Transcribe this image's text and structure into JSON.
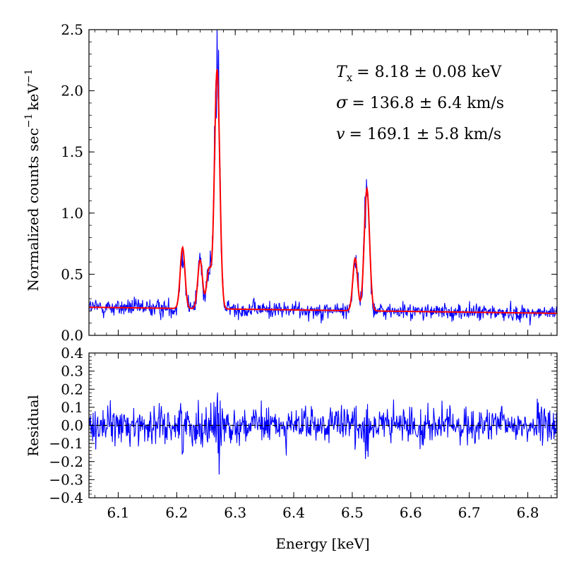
{
  "chart_data": [
    {
      "type": "line",
      "panel": "spectrum",
      "ylabel": "Normalized counts sec",
      "ylabel_unit": "keV",
      "ylabel_exp": "−1",
      "xlim": [
        6.05,
        6.85
      ],
      "ylim": [
        0.0,
        2.5
      ],
      "yticks": [
        0.0,
        0.5,
        1.0,
        1.5,
        2.0,
        2.5
      ],
      "ytick_labels": [
        "0.0",
        "0.5",
        "1.0",
        "1.5",
        "2.0",
        "2.5"
      ],
      "series": [
        {
          "name": "data",
          "color": "#0000ff"
        },
        {
          "name": "model",
          "color": "#ff0000"
        }
      ],
      "continuum": {
        "x": [
          6.05,
          6.85
        ],
        "y": [
          0.23,
          0.18
        ]
      },
      "lines": [
        {
          "center": 6.21,
          "amplitude": 0.5,
          "sigma": 0.004
        },
        {
          "center": 6.24,
          "amplitude": 0.4,
          "sigma": 0.004
        },
        {
          "center": 6.255,
          "amplitude": 0.32,
          "sigma": 0.004
        },
        {
          "center": 6.269,
          "amplitude": 1.96,
          "sigma": 0.0045
        },
        {
          "center": 6.505,
          "amplitude": 0.43,
          "sigma": 0.004
        },
        {
          "center": 6.525,
          "amplitude": 1.0,
          "sigma": 0.0045
        }
      ],
      "annotations": {
        "tx": {
          "sym": "T",
          "sub": "x",
          "value": "= 8.18 ± 0.08 keV"
        },
        "sigma": {
          "sym": "σ",
          "value": "= 136.8 ± 6.4 km/s"
        },
        "v": {
          "sym": "v",
          "value": "= 169.1 ± 5.8 km/s"
        }
      }
    },
    {
      "type": "line",
      "panel": "residual",
      "ylabel": "Residual",
      "xlabel": "Energy [keV]",
      "xlim": [
        6.05,
        6.85
      ],
      "ylim": [
        -0.4,
        0.4
      ],
      "yticks": [
        -0.4,
        -0.3,
        -0.2,
        -0.1,
        0.0,
        0.1,
        0.2,
        0.3,
        0.4
      ],
      "ytick_labels": [
        "−0.4",
        "−0.3",
        "−0.2",
        "−0.1",
        "0.0",
        "0.1",
        "0.2",
        "0.3",
        "0.4"
      ],
      "xticks": [
        6.1,
        6.2,
        6.3,
        6.4,
        6.5,
        6.6,
        6.7,
        6.8
      ],
      "xtick_labels": [
        "6.1",
        "6.2",
        "6.3",
        "6.4",
        "6.5",
        "6.6",
        "6.7",
        "6.8"
      ],
      "series": [
        {
          "name": "residual",
          "color": "#0000ff"
        },
        {
          "name": "zero",
          "color": "#000000",
          "style": "dashed",
          "value": 0.0
        }
      ],
      "noise_amplitude": 0.09
    }
  ]
}
